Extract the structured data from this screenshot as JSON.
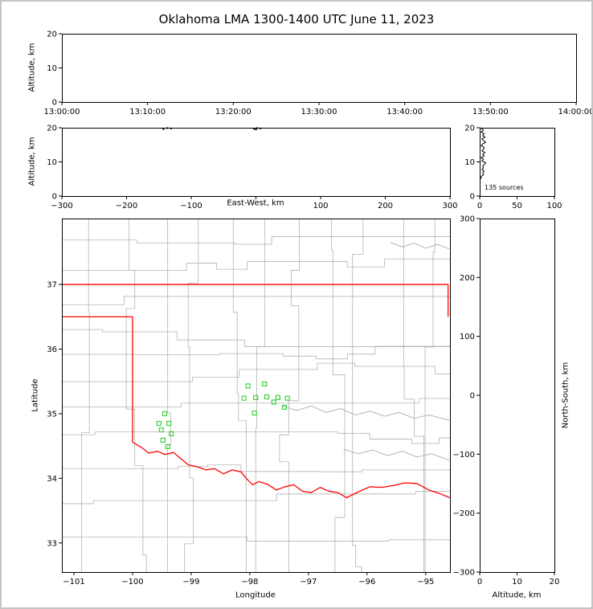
{
  "title": "Oklahoma LMA 1300-1400 UTC June 11, 2023",
  "colors": {
    "frame": "#000000",
    "tick_label": "#000000",
    "county_line": "#b3b3b3",
    "state_border": "#ff0000",
    "station_marker": "#3fd23f",
    "source_point": "#000000",
    "histogram_line": "#000000",
    "figure_border": "#c4c4c4"
  },
  "labels": {
    "alt_ylabel_time": "Altitude, km",
    "alt_ylabel_ew": "Altitude, km",
    "ew_xlabel": "East-West, km",
    "map_xlabel": "Longitude",
    "map_ylabel": "Latitude",
    "ns_xlabel": "Altitude, km",
    "ns_ylabel": "North-South, km",
    "hist_annotation": "135 sources"
  },
  "axes": {
    "time": {
      "x_labels": [
        "13:00:00",
        "13:10:00",
        "13:20:00",
        "13:30:00",
        "13:40:00",
        "13:50:00",
        "14:00:00"
      ],
      "y_values": [
        0,
        10,
        20
      ],
      "y_labels": [
        "0",
        "10",
        "20"
      ],
      "y_range": [
        0,
        20
      ]
    },
    "ew": {
      "x_values": [
        -300,
        -200,
        -100,
        0,
        100,
        200,
        300
      ],
      "x_labels": [
        "−300",
        "−200",
        "−100",
        "",
        "100",
        "200",
        "300"
      ],
      "x_range": [
        -300,
        300
      ],
      "y_values": [
        0,
        10,
        20
      ],
      "y_labels": [
        "0",
        "10",
        "20"
      ],
      "y_range": [
        0,
        20
      ]
    },
    "hist": {
      "x_values": [
        0,
        50,
        100
      ],
      "x_labels": [
        "0",
        "50",
        "100"
      ],
      "x_range": [
        0,
        100
      ],
      "y_values": [
        0,
        10,
        20
      ],
      "y_labels": [
        "0",
        "10",
        "20"
      ],
      "y_range": [
        0,
        20
      ]
    },
    "map": {
      "x_values": [
        -101,
        -100,
        -99,
        -98,
        -97,
        -96,
        -95
      ],
      "x_labels": [
        "−101",
        "−100",
        "−99",
        "−98",
        "−97",
        "−96",
        "−95"
      ],
      "y_values": [
        33,
        34,
        35,
        36,
        37
      ],
      "y_labels": [
        "33",
        "34",
        "35",
        "36",
        "37"
      ]
    },
    "ns": {
      "x_values": [
        0,
        10,
        20
      ],
      "x_labels": [
        "0",
        "10",
        "20"
      ],
      "x_range": [
        0,
        20
      ],
      "y_values": [
        300,
        200,
        100,
        0,
        -100,
        -200,
        -300
      ],
      "y_labels": [
        "300",
        "200",
        "100",
        "0",
        "−100",
        "−200",
        "−300"
      ],
      "y_range": [
        -300,
        300
      ]
    }
  },
  "chart_data": {
    "type": "scatter",
    "title": "Oklahoma LMA 1300-1400 UTC June 11, 2023",
    "description": "Lightning Mapping Array source display: time-height panel, east-west height panel, altitude histogram, plan-view map with LMA stations, north-south height panel",
    "total_sources": 135,
    "time_height": {
      "xlim_utc": [
        "13:00:00",
        "14:00:00"
      ],
      "ylim_km": [
        0,
        20
      ],
      "points": []
    },
    "ew_height": {
      "xlim_km": [
        -300,
        300
      ],
      "ylim_km": [
        0,
        20
      ],
      "points_km": [
        [
          -143,
          19.6
        ],
        [
          -137,
          19.9
        ],
        [
          -131,
          19.8
        ],
        [
          -3,
          19.7
        ],
        [
          2,
          19.9
        ],
        [
          7,
          19.8
        ],
        [
          0,
          19.5
        ]
      ]
    },
    "altitude_histogram": {
      "xlim_counts": [
        0,
        100
      ],
      "ylim_km": [
        0,
        20
      ],
      "bin_km": 0.5,
      "alt_km": [
        19.75,
        19.25,
        18.75,
        18.25,
        17.75,
        17.25,
        16.75,
        16.25,
        15.75,
        15.25,
        14.75,
        14.25,
        13.75,
        13.25,
        12.75,
        12.25,
        11.75,
        11.25,
        10.75,
        10.25,
        9.75,
        9.25,
        8.75,
        8.25,
        7.75,
        7.25,
        6.75,
        6.25,
        5.75,
        5.25
      ],
      "counts": [
        3,
        5,
        2,
        6,
        4,
        7,
        3,
        5,
        8,
        4,
        2,
        6,
        5,
        3,
        7,
        4,
        6,
        2,
        5,
        3,
        8,
        6,
        4,
        5,
        3,
        6,
        4,
        5,
        2,
        2
      ]
    },
    "map": {
      "lon_lim": [
        -101.205,
        -94.586
      ],
      "lat_lim": [
        32.55,
        38.02
      ],
      "county_grid": {
        "seed": 11
      },
      "stations_lonlat": [
        [
          -98.03,
          35.43
        ],
        [
          -97.75,
          35.46
        ],
        [
          -98.1,
          35.24
        ],
        [
          -97.9,
          35.25
        ],
        [
          -97.71,
          35.26
        ],
        [
          -97.52,
          35.25
        ],
        [
          -97.36,
          35.24
        ],
        [
          -97.59,
          35.18
        ],
        [
          -97.92,
          35.01
        ],
        [
          -97.41,
          35.1
        ],
        [
          -99.45,
          35.0
        ],
        [
          -99.55,
          34.85
        ],
        [
          -99.38,
          34.85
        ],
        [
          -99.51,
          34.75
        ],
        [
          -99.34,
          34.69
        ],
        [
          -99.48,
          34.59
        ],
        [
          -99.4,
          34.49
        ]
      ],
      "state_border_paths": [
        [
          [
            -101.21,
            37.0
          ],
          [
            -94.618,
            37.0
          ]
        ],
        [
          [
            -94.618,
            37.0
          ],
          [
            -94.618,
            36.5
          ]
        ],
        [
          [
            -101.21,
            36.5
          ],
          [
            -100.0,
            36.5
          ],
          [
            -100.0,
            34.56
          ],
          [
            -99.85,
            34.48
          ],
          [
            -99.72,
            34.39
          ],
          [
            -99.58,
            34.42
          ],
          [
            -99.45,
            34.37
          ],
          [
            -99.3,
            34.4
          ],
          [
            -99.21,
            34.33
          ],
          [
            -99.05,
            34.21
          ],
          [
            -98.9,
            34.18
          ],
          [
            -98.75,
            34.13
          ],
          [
            -98.6,
            34.15
          ],
          [
            -98.45,
            34.07
          ],
          [
            -98.3,
            34.13
          ],
          [
            -98.15,
            34.1
          ],
          [
            -98.05,
            33.99
          ],
          [
            -97.95,
            33.9
          ],
          [
            -97.85,
            33.95
          ],
          [
            -97.7,
            33.91
          ],
          [
            -97.55,
            33.82
          ],
          [
            -97.4,
            33.87
          ],
          [
            -97.25,
            33.9
          ],
          [
            -97.1,
            33.8
          ],
          [
            -96.95,
            33.78
          ],
          [
            -96.8,
            33.86
          ],
          [
            -96.65,
            33.8
          ],
          [
            -96.5,
            33.78
          ],
          [
            -96.35,
            33.7
          ],
          [
            -96.15,
            33.79
          ],
          [
            -95.95,
            33.87
          ],
          [
            -95.75,
            33.86
          ],
          [
            -95.55,
            33.89
          ],
          [
            -95.35,
            33.93
          ],
          [
            -95.15,
            33.92
          ],
          [
            -94.95,
            33.82
          ],
          [
            -94.75,
            33.76
          ],
          [
            -94.59,
            33.7
          ]
        ]
      ],
      "river_paths": [
        [
          [
            -97.45,
            35.12
          ],
          [
            -97.2,
            35.05
          ],
          [
            -96.95,
            35.12
          ],
          [
            -96.7,
            35.02
          ],
          [
            -96.45,
            35.08
          ],
          [
            -96.2,
            34.98
          ],
          [
            -95.95,
            35.04
          ],
          [
            -95.7,
            34.96
          ],
          [
            -95.45,
            35.02
          ],
          [
            -95.2,
            34.93
          ],
          [
            -94.95,
            34.98
          ],
          [
            -94.6,
            34.9
          ]
        ],
        [
          [
            -95.6,
            37.65
          ],
          [
            -95.4,
            37.58
          ],
          [
            -95.2,
            37.64
          ],
          [
            -95.0,
            37.56
          ],
          [
            -94.8,
            37.62
          ],
          [
            -94.6,
            37.55
          ]
        ],
        [
          [
            -96.4,
            34.45
          ],
          [
            -96.15,
            34.38
          ],
          [
            -95.9,
            34.44
          ],
          [
            -95.65,
            34.35
          ],
          [
            -95.4,
            34.42
          ],
          [
            -95.15,
            34.33
          ],
          [
            -94.9,
            34.38
          ],
          [
            -94.6,
            34.28
          ]
        ]
      ]
    },
    "ns_height": {
      "xlim_km": [
        0,
        20
      ],
      "ylim_km": [
        -300,
        300
      ],
      "points": []
    }
  }
}
